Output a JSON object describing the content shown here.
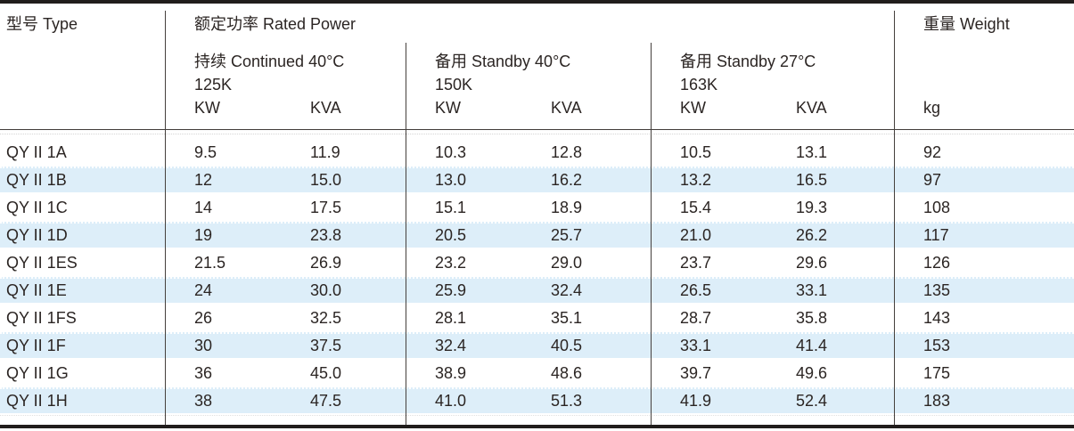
{
  "header": {
    "type_col": "型号 Type",
    "rated_power": "额定功率 Rated Power",
    "weight": "重量 Weight",
    "weight_unit": "kg",
    "sections": [
      {
        "title": "持续 Continued 40°C",
        "k_class": "125K",
        "kw": "KW",
        "kva": "KVA"
      },
      {
        "title": "备用 Standby 40°C",
        "k_class": "150K",
        "kw": "KW",
        "kva": "KVA"
      },
      {
        "title": "备用 Standby 27°C",
        "k_class": "163K",
        "kw": "KW",
        "kva": "KVA"
      }
    ]
  },
  "rows": [
    {
      "type": "QY II 1A",
      "c_kw": "9.5",
      "c_kva": "11.9",
      "s40_kw": "10.3",
      "s40_kva": "12.8",
      "s27_kw": "10.5",
      "s27_kva": "13.1",
      "wt": "92"
    },
    {
      "type": "QY II 1B",
      "c_kw": "12",
      "c_kva": "15.0",
      "s40_kw": "13.0",
      "s40_kva": "16.2",
      "s27_kw": "13.2",
      "s27_kva": "16.5",
      "wt": "97"
    },
    {
      "type": "QY II 1C",
      "c_kw": "14",
      "c_kva": "17.5",
      "s40_kw": "15.1",
      "s40_kva": "18.9",
      "s27_kw": "15.4",
      "s27_kva": "19.3",
      "wt": "108"
    },
    {
      "type": "QY II 1D",
      "c_kw": "19",
      "c_kva": "23.8",
      "s40_kw": "20.5",
      "s40_kva": "25.7",
      "s27_kw": "21.0",
      "s27_kva": "26.2",
      "wt": "117"
    },
    {
      "type": "QY II 1ES",
      "c_kw": "21.5",
      "c_kva": "26.9",
      "s40_kw": "23.2",
      "s40_kva": "29.0",
      "s27_kw": "23.7",
      "s27_kva": "29.6",
      "wt": "126"
    },
    {
      "type": "QY II 1E",
      "c_kw": "24",
      "c_kva": "30.0",
      "s40_kw": "25.9",
      "s40_kva": "32.4",
      "s27_kw": "26.5",
      "s27_kva": "33.1",
      "wt": "135"
    },
    {
      "type": "QY II 1FS",
      "c_kw": "26",
      "c_kva": "32.5",
      "s40_kw": "28.1",
      "s40_kva": "35.1",
      "s27_kw": "28.7",
      "s27_kva": "35.8",
      "wt": "143"
    },
    {
      "type": "QY II 1F",
      "c_kw": "30",
      "c_kva": "37.5",
      "s40_kw": "32.4",
      "s40_kva": "40.5",
      "s27_kw": "33.1",
      "s27_kva": "41.4",
      "wt": "153"
    },
    {
      "type": "QY II 1G",
      "c_kw": "36",
      "c_kva": "45.0",
      "s40_kw": "38.9",
      "s40_kva": "48.6",
      "s27_kw": "39.7",
      "s27_kva": "49.6",
      "wt": "175"
    },
    {
      "type": "QY II 1H",
      "c_kw": "38",
      "c_kva": "47.5",
      "s40_kw": "41.0",
      "s40_kva": "51.3",
      "s27_kw": "41.9",
      "s27_kva": "52.4",
      "wt": "183"
    }
  ],
  "colors": {
    "stripe": "#ddeef9",
    "text": "#2b2523",
    "rule": "#45403d",
    "frame": "#211d1c"
  }
}
